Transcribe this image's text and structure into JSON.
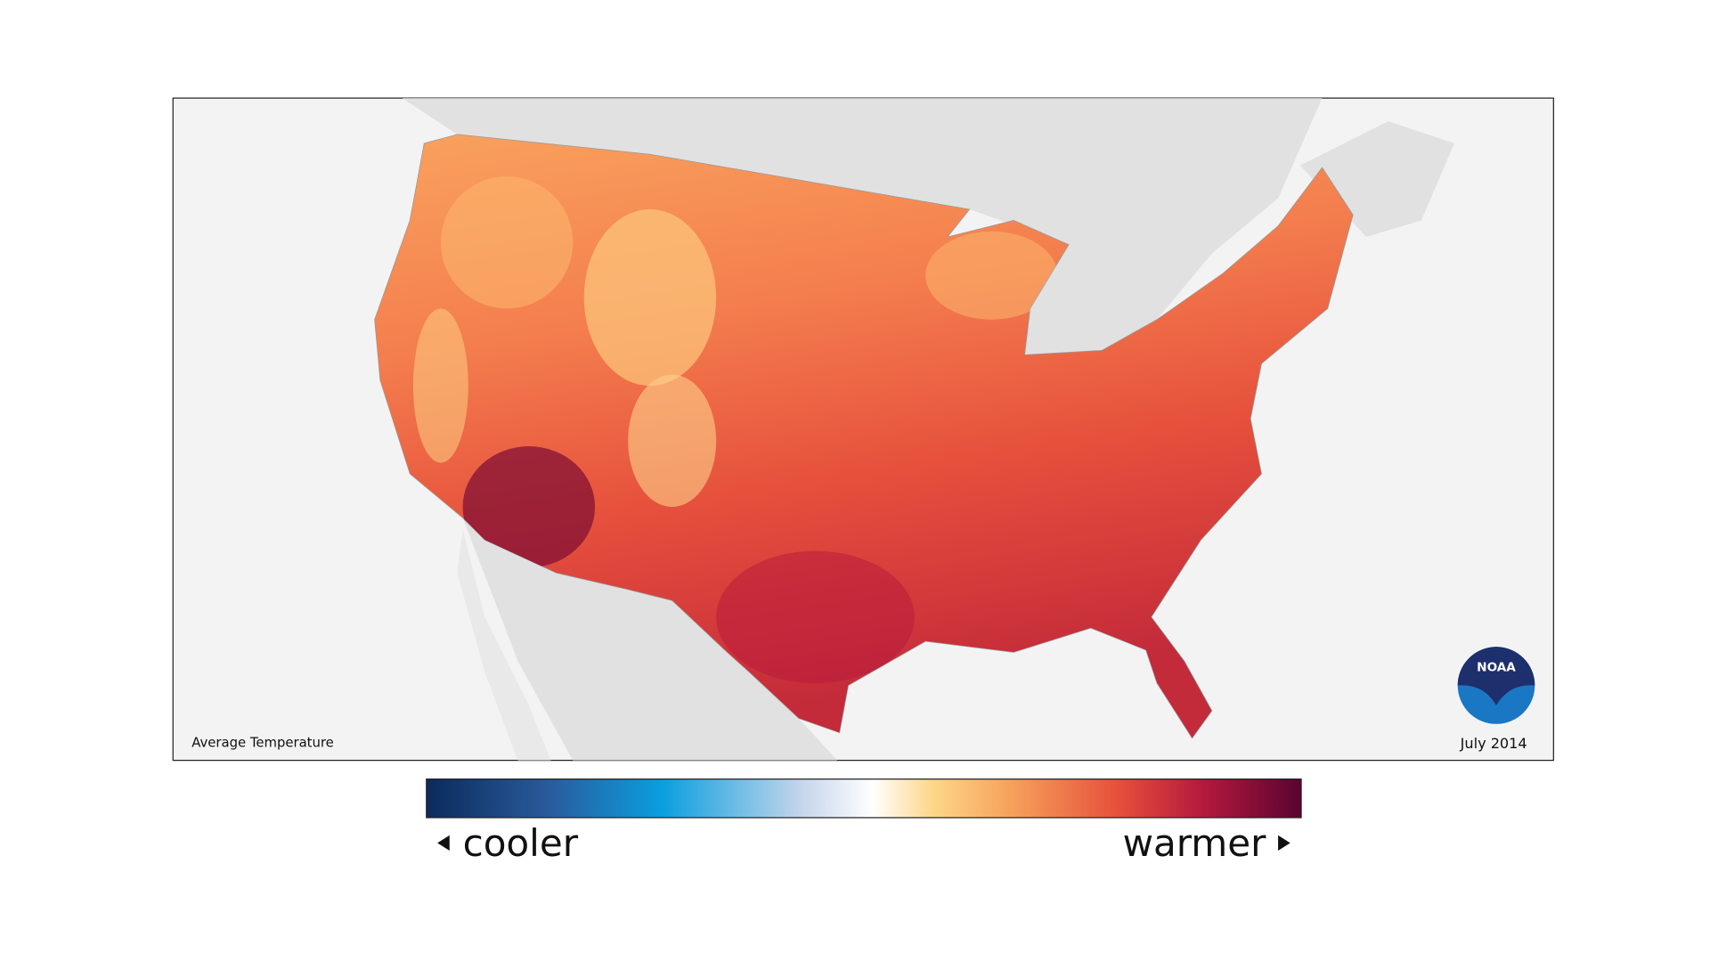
{
  "map": {
    "title": "Average Temperature",
    "date": "July 2014"
  },
  "logo": {
    "text": "NOAA"
  },
  "legend": {
    "low_label": "cooler",
    "high_label": "warmer"
  }
}
